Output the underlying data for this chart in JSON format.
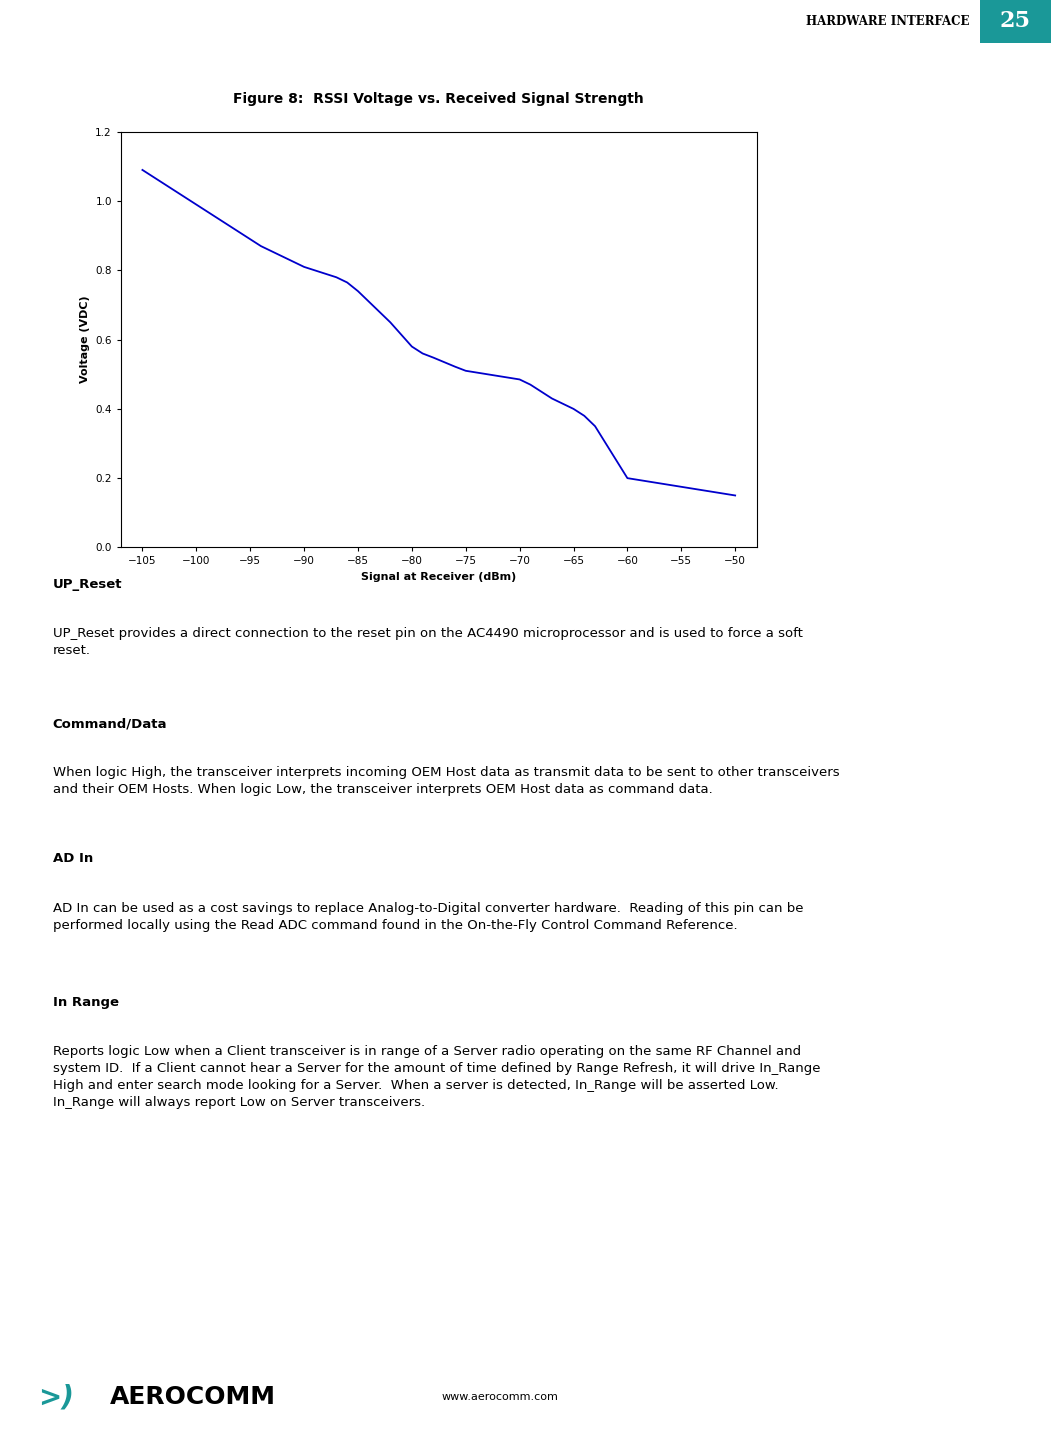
{
  "title": "Figure 8:  RSSI Voltage vs. Received Signal Strength",
  "xlabel": "Signal at Receiver (dBm)",
  "ylabel": "Voltage (VDC)",
  "line_color": "#0000CC",
  "line_width": 1.3,
  "xlim": [
    -107,
    -48
  ],
  "ylim": [
    0,
    1.2
  ],
  "xticks": [
    -105,
    -100,
    -95,
    -90,
    -85,
    -80,
    -75,
    -70,
    -65,
    -60,
    -55,
    -50
  ],
  "yticks": [
    0,
    0.2,
    0.4,
    0.6,
    0.8,
    1.0,
    1.2
  ],
  "x_data": [
    -105,
    -104,
    -103,
    -102,
    -101,
    -100,
    -99,
    -98,
    -97,
    -96,
    -95,
    -94,
    -93,
    -92,
    -91,
    -90,
    -89,
    -88,
    -87,
    -86,
    -85,
    -84,
    -83,
    -82,
    -81,
    -80,
    -79,
    -78,
    -77,
    -76,
    -75,
    -74,
    -73,
    -72,
    -71,
    -70,
    -69,
    -68,
    -67,
    -66,
    -65,
    -64,
    -63,
    -62,
    -61,
    -60,
    -59,
    -58,
    -57,
    -56,
    -55,
    -54,
    -53,
    -52,
    -51,
    -50
  ],
  "y_data": [
    1.09,
    1.07,
    1.05,
    1.03,
    1.01,
    0.99,
    0.97,
    0.95,
    0.93,
    0.91,
    0.89,
    0.87,
    0.855,
    0.84,
    0.825,
    0.81,
    0.8,
    0.79,
    0.78,
    0.765,
    0.74,
    0.71,
    0.68,
    0.65,
    0.615,
    0.58,
    0.56,
    0.548,
    0.535,
    0.522,
    0.51,
    0.505,
    0.5,
    0.495,
    0.49,
    0.485,
    0.47,
    0.45,
    0.43,
    0.415,
    0.4,
    0.38,
    0.35,
    0.3,
    0.25,
    0.2,
    0.195,
    0.19,
    0.185,
    0.18,
    0.175,
    0.17,
    0.165,
    0.16,
    0.155,
    0.15
  ],
  "header_text": "HARDWARE INTERFACE",
  "header_number": "25",
  "header_bg_color": "#1a9898",
  "page_bg_color": "#ffffff",
  "body_sections": [
    {
      "label": "UP_Reset",
      "content": "UP_Reset provides a direct connection to the reset pin on the AC4490 microprocessor and is used to force a soft\nreset."
    },
    {
      "label": "Command/Data",
      "content": "When logic High, the transceiver interprets incoming OEM Host data as transmit data to be sent to other transceivers\nand their OEM Hosts. When logic Low, the transceiver interprets OEM Host data as command data."
    },
    {
      "label": "AD In",
      "content": "AD In can be used as a cost savings to replace Analog-to-Digital converter hardware.  Reading of this pin can be\nperformed locally using the Read ADC command found in the On-the-Fly Control Command Reference."
    },
    {
      "label": "In Range",
      "content": "Reports logic Low when a Client transceiver is in range of a Server radio operating on the same RF Channel and\nsystem ID.  If a Client cannot hear a Server for the amount of time defined by Range Refresh, it will drive In_Range\nHigh and enter search mode looking for a Server.  When a server is detected, In_Range will be asserted Low.\nIn_Range will always report Low on Server transceivers."
    }
  ],
  "footer_url": "www.aerocomm.com"
}
